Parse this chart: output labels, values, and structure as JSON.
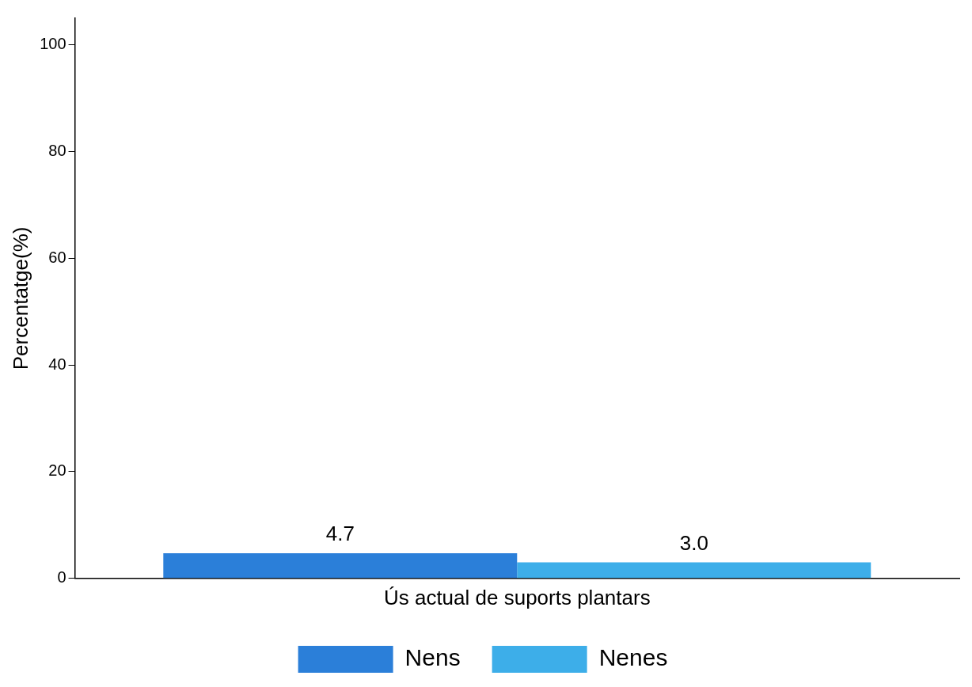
{
  "chart_data": {
    "type": "bar",
    "xlabel": "Ús actual de suports plantars",
    "ylabel": "Percentatge(%)",
    "categories": [
      null
    ],
    "tick_labels": "y",
    "ylim": [
      0,
      105
    ],
    "yticks": [
      0,
      20,
      40,
      60,
      80,
      100
    ],
    "grid": false,
    "legend": "bottom",
    "series": [
      {
        "name": "Nens",
        "color": "#2b7fd9",
        "values": [
          4.7
        ],
        "value_labels": [
          "4.7"
        ]
      },
      {
        "name": "Nenes",
        "color": "#3daee9",
        "values": [
          3
        ],
        "value_labels": [
          "3.0"
        ]
      }
    ]
  }
}
